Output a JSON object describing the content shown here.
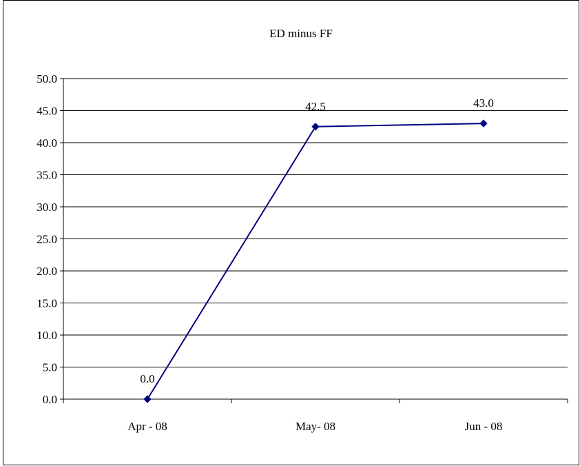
{
  "chart_data": {
    "type": "line",
    "title": "ED minus FF",
    "xlabel": "",
    "ylabel": "",
    "categories": [
      "Apr - 08",
      "May- 08",
      "Jun - 08"
    ],
    "series": [
      {
        "values": [
          0.0,
          42.5,
          43.0
        ],
        "data_labels": [
          "0.0",
          "42.5",
          "43.0"
        ],
        "color": "#000080",
        "marker": "diamond"
      }
    ],
    "ylim": [
      0,
      50
    ],
    "y_ticks": [
      "0.0",
      "5.0",
      "10.0",
      "15.0",
      "20.0",
      "25.0",
      "30.0",
      "35.0",
      "40.0",
      "45.0",
      "50.0"
    ],
    "grid": "horizontal",
    "legend": "none"
  }
}
